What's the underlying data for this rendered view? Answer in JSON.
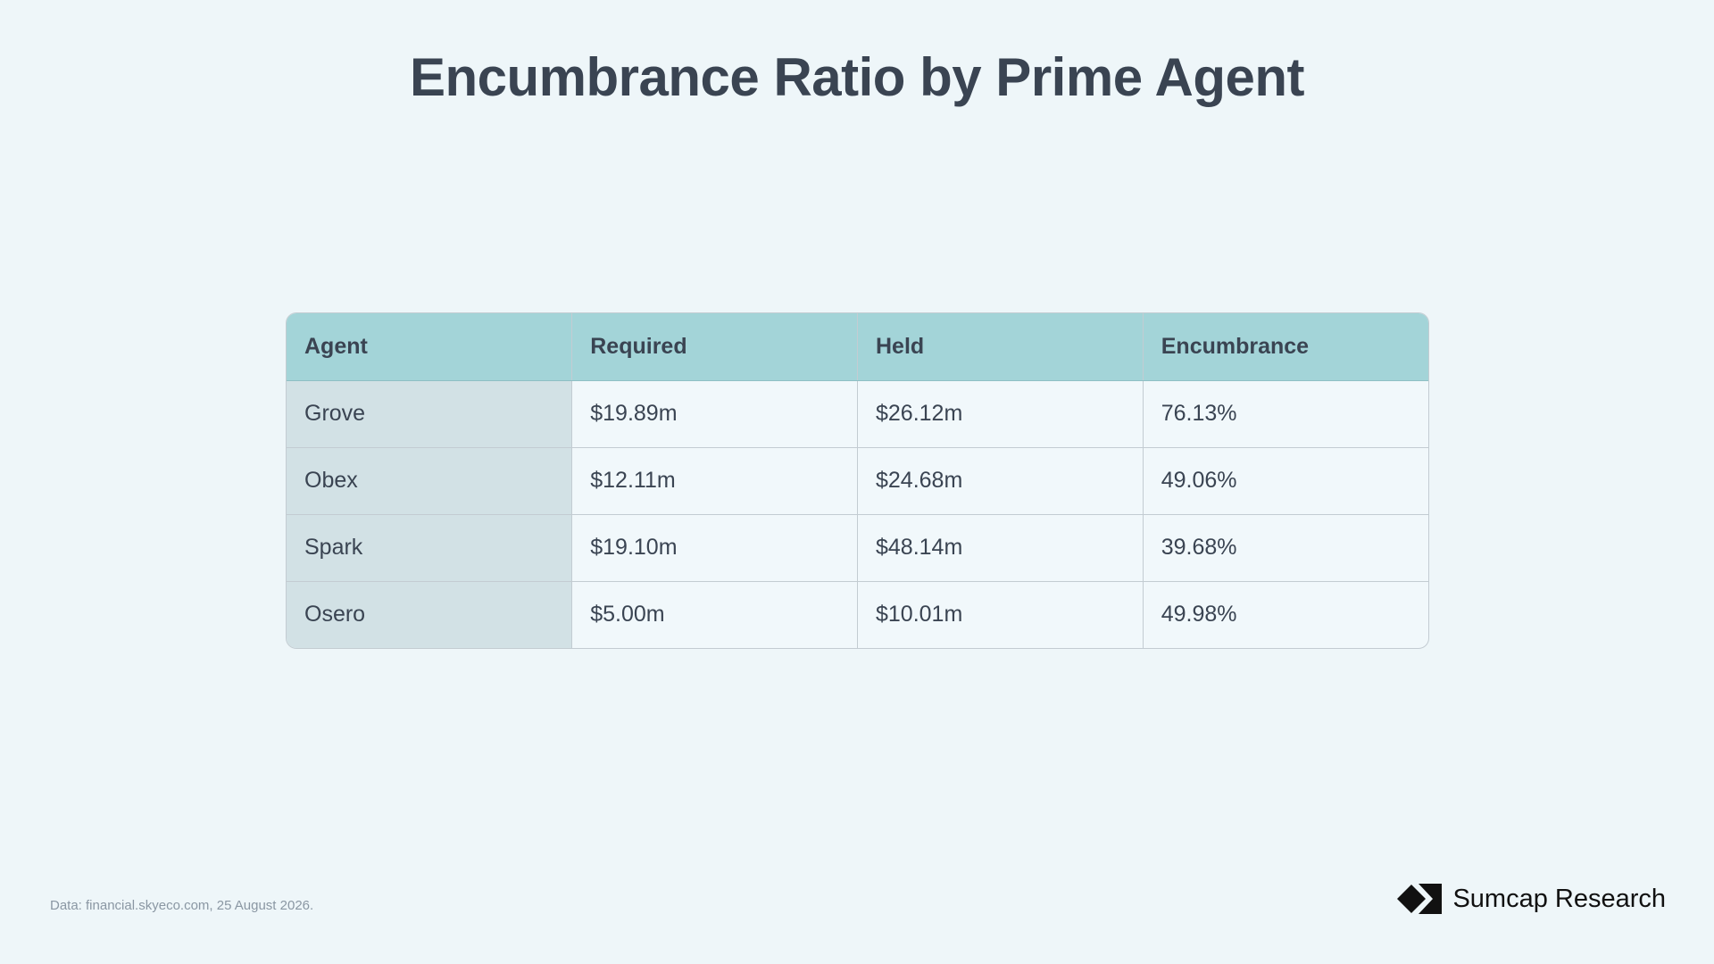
{
  "chart_data": {
    "type": "table",
    "title": "Encumbrance Ratio by Prime Agent",
    "columns": [
      "Agent",
      "Required",
      "Held",
      "Encumbrance"
    ],
    "rows": [
      [
        "Grove",
        "$19.89m",
        "$26.12m",
        "76.13%"
      ],
      [
        "Obex",
        "$12.11m",
        "$24.68m",
        "49.06%"
      ],
      [
        "Spark",
        "$19.10m",
        "$48.14m",
        "39.68%"
      ],
      [
        "Osero",
        "$5.00m",
        "$10.01m",
        "49.98%"
      ]
    ]
  },
  "footer": {
    "source": "Data: financial.skyeco.com, 25 August 2026.",
    "brand": "Sumcap Research",
    "brand_icon": "sumcap-logo-icon"
  },
  "colors": {
    "background": "#eef6f9",
    "header_fill": "#a3d4d8",
    "first_column_fill": "#d2e1e5",
    "text": "#3a4452"
  }
}
